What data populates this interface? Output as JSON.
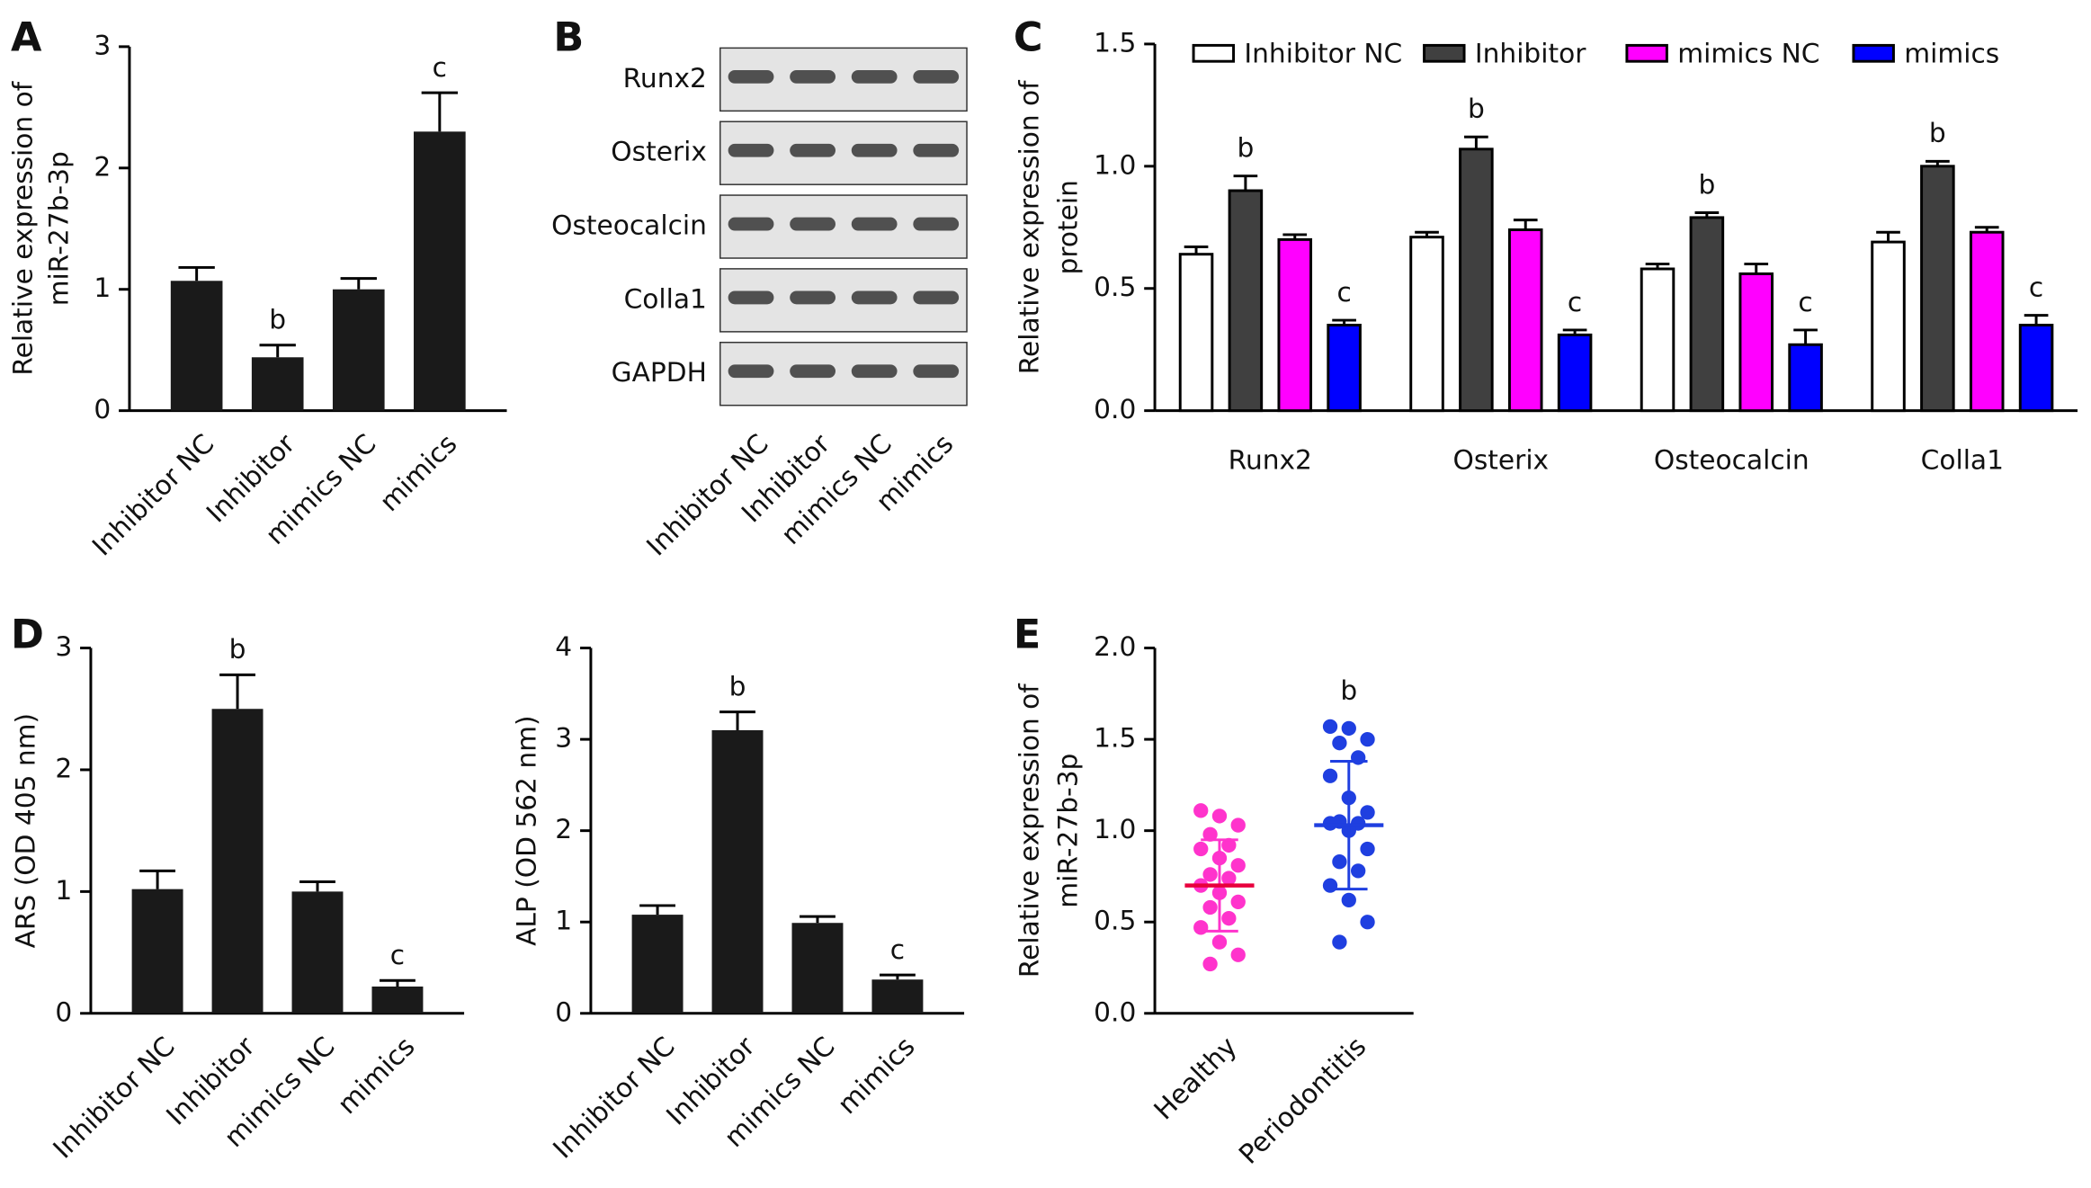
{
  "charts": [
    {
      "type": "bar",
      "panel": "A",
      "ylabel": [
        "Relative expression of",
        "miR-27b-3p"
      ],
      "categories": [
        "Inhibitor NC",
        "Inhibitor",
        "mimics NC",
        "mimics"
      ],
      "values": [
        1.07,
        0.44,
        1.0,
        2.3
      ],
      "errors": [
        0.11,
        0.1,
        0.09,
        0.32
      ],
      "annotations": [
        null,
        "b",
        null,
        "c"
      ],
      "color": "#1a1a1a",
      "ylim": [
        0,
        3
      ],
      "yticks": [
        0,
        1,
        2,
        3
      ]
    },
    {
      "type": "blot",
      "panel": "B",
      "rows": [
        "Runx2",
        "Osterix",
        "Osteocalcin",
        "Colla1",
        "GAPDH"
      ],
      "categories": [
        "Inhibitor NC",
        "Inhibitor",
        "mimics NC",
        "mimics"
      ]
    },
    {
      "type": "grouped-bar",
      "panel": "C",
      "ylabel": [
        "Relative expression of",
        "protein"
      ],
      "categories": [
        "Runx2",
        "Osterix",
        "Osteocalcin",
        "Colla1"
      ],
      "series": [
        {
          "name": "Inhibitor NC",
          "color": "#ffffff",
          "values": [
            0.64,
            0.71,
            0.58,
            0.69
          ],
          "errors": [
            0.03,
            0.02,
            0.02,
            0.04
          ],
          "annotations": [
            null,
            null,
            null,
            null
          ]
        },
        {
          "name": "Inhibitor",
          "color": "#404040",
          "values": [
            0.9,
            1.07,
            0.79,
            1.0
          ],
          "errors": [
            0.06,
            0.05,
            0.02,
            0.02
          ],
          "annotations": [
            "b",
            "b",
            "b",
            "b"
          ]
        },
        {
          "name": "mimics NC",
          "color": "#ff00ff",
          "values": [
            0.7,
            0.74,
            0.56,
            0.73
          ],
          "errors": [
            0.02,
            0.04,
            0.04,
            0.02
          ],
          "annotations": [
            null,
            null,
            null,
            null
          ]
        },
        {
          "name": "mimics",
          "color": "#0000ff",
          "values": [
            0.35,
            0.31,
            0.27,
            0.35
          ],
          "errors": [
            0.02,
            0.02,
            0.06,
            0.04
          ],
          "annotations": [
            "c",
            "c",
            "c",
            "c"
          ]
        }
      ],
      "ylim": [
        0,
        1.5
      ],
      "yticks": [
        {
          "value": 0,
          "label": "0.0"
        },
        0.5,
        {
          "value": 1,
          "label": "1.0"
        },
        {
          "value": 1.5,
          "label": "1.5"
        }
      ],
      "legend": "top"
    },
    {
      "type": "bar",
      "panel": "D",
      "ylabel": [
        "ARS (OD 405 nm)"
      ],
      "categories": [
        "Inhibitor NC",
        "Inhibitor",
        "mimics NC",
        "mimics"
      ],
      "values": [
        1.02,
        2.5,
        1.0,
        0.22
      ],
      "errors": [
        0.15,
        0.28,
        0.08,
        0.05
      ],
      "annotations": [
        null,
        "b",
        null,
        "c"
      ],
      "color": "#1a1a1a",
      "ylim": [
        0,
        3
      ],
      "yticks": [
        0,
        1,
        2,
        3
      ]
    },
    {
      "type": "bar",
      "ylabel": [
        "ALP (OD 562 nm)"
      ],
      "categories": [
        "Inhibitor NC",
        "Inhibitor",
        "mimics NC",
        "mimics"
      ],
      "values": [
        1.08,
        3.1,
        0.99,
        0.37
      ],
      "errors": [
        0.1,
        0.2,
        0.07,
        0.05
      ],
      "annotations": [
        null,
        "b",
        null,
        "c"
      ],
      "color": "#1a1a1a",
      "ylim": [
        0,
        4
      ],
      "yticks": [
        0,
        1,
        2,
        3,
        4
      ]
    },
    {
      "type": "dot",
      "panel": "E",
      "ylabel": [
        "Relative expression of",
        "miR-27b-3p"
      ],
      "series": [
        {
          "name": "Healthy",
          "color": "#ff33cc",
          "mean_color": "#e8003d",
          "mean": 0.7,
          "sd": 0.25,
          "annotation": null,
          "values": [
            1.11,
            1.08,
            1.03,
            0.98,
            0.92,
            0.9,
            0.85,
            0.81,
            0.76,
            0.74,
            0.7,
            0.66,
            0.61,
            0.58,
            0.52,
            0.47,
            0.39,
            0.32,
            0.27
          ]
        },
        {
          "name": "Periodontitis",
          "color": "#1f3fe0",
          "mean_color": "#1f3fe0",
          "mean": 1.03,
          "sd": 0.35,
          "annotation": "b",
          "values": [
            1.57,
            1.56,
            1.5,
            1.48,
            1.4,
            1.3,
            1.18,
            1.1,
            1.05,
            1.04,
            1.04,
            1.0,
            0.9,
            0.83,
            0.78,
            0.7,
            0.62,
            0.5,
            0.39
          ]
        }
      ],
      "ylim": [
        0,
        2
      ],
      "yticks": [
        {
          "value": 0,
          "label": "0.0"
        },
        0.5,
        {
          "value": 1,
          "label": "1.0"
        },
        1.5,
        {
          "value": 2,
          "label": "2.0"
        }
      ]
    }
  ]
}
